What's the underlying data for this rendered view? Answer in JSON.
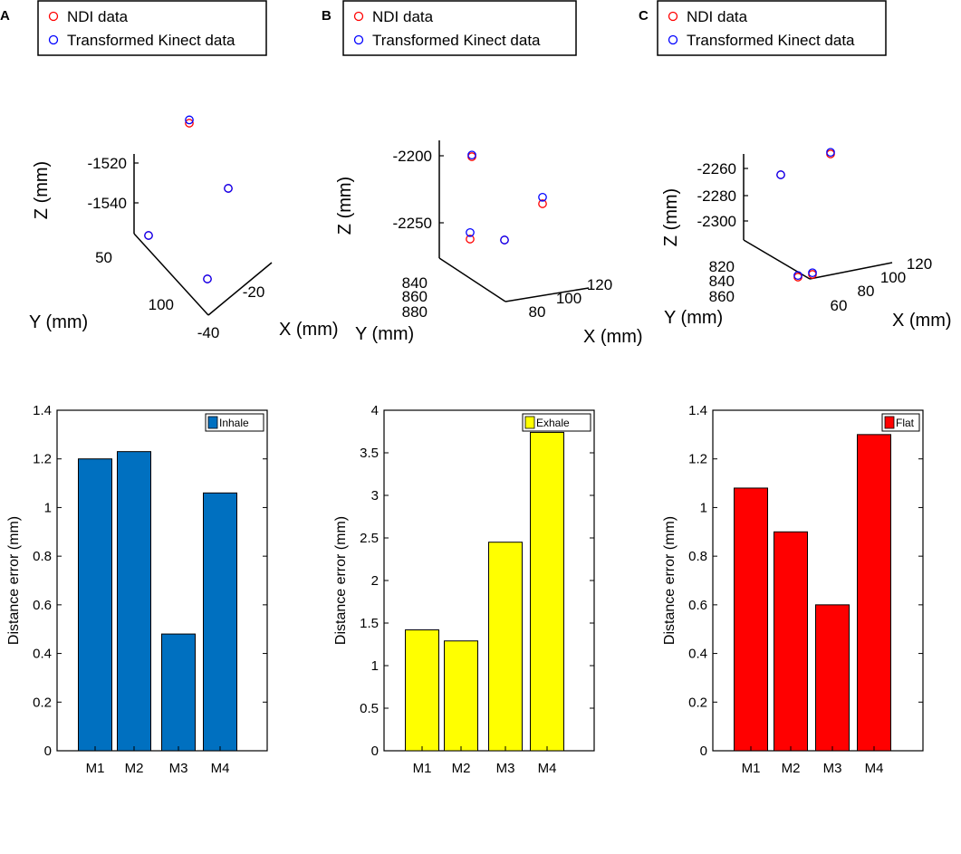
{
  "figure": {
    "panels": [
      {
        "letter": "A"
      },
      {
        "letter": "B"
      },
      {
        "letter": "C"
      }
    ],
    "colors": {
      "ndi_marker": "#ff0000",
      "kinect_marker": "#0000ff",
      "inhale": "#0070c0",
      "exhale": "#ffff00",
      "flat": "#ff0000",
      "axes": "#000000"
    }
  },
  "chart_data": [
    {
      "type": "scatter",
      "panel": "A",
      "chart_kind": "3d-scatter",
      "legend": [
        "NDI data",
        "Transformed Kinect data"
      ],
      "xlabel": "X (mm)",
      "ylabel": "Y (mm)",
      "zlabel": "Z (mm)",
      "x_ticks": [
        "-40",
        "-20"
      ],
      "y_ticks": [
        "50",
        "100"
      ],
      "z_ticks": [
        "-1520",
        "-1540"
      ],
      "series": [
        {
          "name": "NDI data",
          "points": [
            {
              "x": -42,
              "y": 75,
              "z": -1501
            },
            {
              "x": -18,
              "y": 60,
              "z": -1536
            },
            {
              "x": -38,
              "y": 102,
              "z": -1560
            },
            {
              "x": -48,
              "y": 48,
              "z": -1558
            }
          ]
        },
        {
          "name": "Transformed Kinect data",
          "points": [
            {
              "x": -42,
              "y": 75,
              "z": -1499
            },
            {
              "x": -18,
              "y": 60,
              "z": -1536
            },
            {
              "x": -38,
              "y": 102,
              "z": -1560
            },
            {
              "x": -48,
              "y": 48,
              "z": -1558
            }
          ]
        }
      ]
    },
    {
      "type": "scatter",
      "panel": "B",
      "chart_kind": "3d-scatter",
      "legend": [
        "NDI data",
        "Transformed Kinect data"
      ],
      "xlabel": "X (mm)",
      "ylabel": "Y (mm)",
      "zlabel": "Z (mm)",
      "x_ticks": [
        "80",
        "100",
        "120"
      ],
      "y_ticks": [
        "840",
        "860",
        "880"
      ],
      "z_ticks": [
        "-2200",
        "-2250"
      ],
      "series": [
        {
          "name": "NDI data",
          "points": [
            {
              "x": 70,
              "y": 870,
              "z": -2202
            },
            {
              "x": 110,
              "y": 852,
              "z": -2236
            },
            {
              "x": 62,
              "y": 872,
              "z": -2258
            },
            {
              "x": 80,
              "y": 848,
              "z": -2257
            }
          ]
        },
        {
          "name": "Transformed Kinect data",
          "points": [
            {
              "x": 70,
              "y": 870,
              "z": -2201
            },
            {
              "x": 110,
              "y": 852,
              "z": -2232
            },
            {
              "x": 62,
              "y": 872,
              "z": -2254
            },
            {
              "x": 80,
              "y": 848,
              "z": -2257
            }
          ]
        }
      ]
    },
    {
      "type": "scatter",
      "panel": "C",
      "chart_kind": "3d-scatter",
      "legend": [
        "NDI data",
        "Transformed Kinect data"
      ],
      "xlabel": "X (mm)",
      "ylabel": "Y (mm)",
      "zlabel": "Z (mm)",
      "x_ticks": [
        "60",
        "80",
        "100",
        "120"
      ],
      "y_ticks": [
        "820",
        "840",
        "860"
      ],
      "z_ticks": [
        "-2260",
        "-2280",
        "-2300"
      ],
      "series": [
        {
          "name": "NDI data",
          "points": [
            {
              "x": 95,
              "y": 860,
              "z": -2246
            },
            {
              "x": 55,
              "y": 868,
              "z": -2266
            },
            {
              "x": 55,
              "y": 822,
              "z": -2333
            },
            {
              "x": 65,
              "y": 825,
              "z": -2331
            }
          ]
        },
        {
          "name": "Transformed Kinect data",
          "points": [
            {
              "x": 95,
              "y": 860,
              "z": -2245
            },
            {
              "x": 55,
              "y": 868,
              "z": -2266
            },
            {
              "x": 55,
              "y": 822,
              "z": -2332
            },
            {
              "x": 65,
              "y": 825,
              "z": -2330
            }
          ]
        }
      ]
    },
    {
      "type": "bar",
      "panel": "A",
      "categories": [
        "M1",
        "M2",
        "M3",
        "M4"
      ],
      "values": [
        1.2,
        1.23,
        0.48,
        1.06
      ],
      "legend": "Inhale",
      "xlabel": "",
      "ylabel": "Distance error (mm)",
      "ylim": [
        0,
        1.4
      ],
      "yticks": [
        "0",
        "0.2",
        "0.4",
        "0.6",
        "0.8",
        "1",
        "1.2",
        "1.4"
      ],
      "xlim": [
        0.5,
        6.5
      ]
    },
    {
      "type": "bar",
      "panel": "B",
      "categories": [
        "M1",
        "M2",
        "M3",
        "M4"
      ],
      "values": [
        1.42,
        1.29,
        2.45,
        3.74
      ],
      "legend": "Exhale",
      "xlabel": "",
      "ylabel": "Distance error (mm)",
      "ylim": [
        0,
        4
      ],
      "yticks": [
        "0",
        "0.5",
        "1",
        "1.5",
        "2",
        "2.5",
        "3",
        "3.5",
        "4"
      ],
      "xlim": [
        0.5,
        6.5
      ]
    },
    {
      "type": "bar",
      "panel": "C",
      "categories": [
        "M1",
        "M2",
        "M3",
        "M4"
      ],
      "values": [
        1.08,
        0.9,
        0.6,
        1.3
      ],
      "legend": "Flat",
      "xlabel": "",
      "ylabel": "Distance error (mm)",
      "ylim": [
        0,
        1.4
      ],
      "yticks": [
        "0",
        "0.2",
        "0.4",
        "0.6",
        "0.8",
        "1",
        "1.2",
        "1.4"
      ],
      "xlim": [
        0.5,
        6.5
      ]
    }
  ]
}
